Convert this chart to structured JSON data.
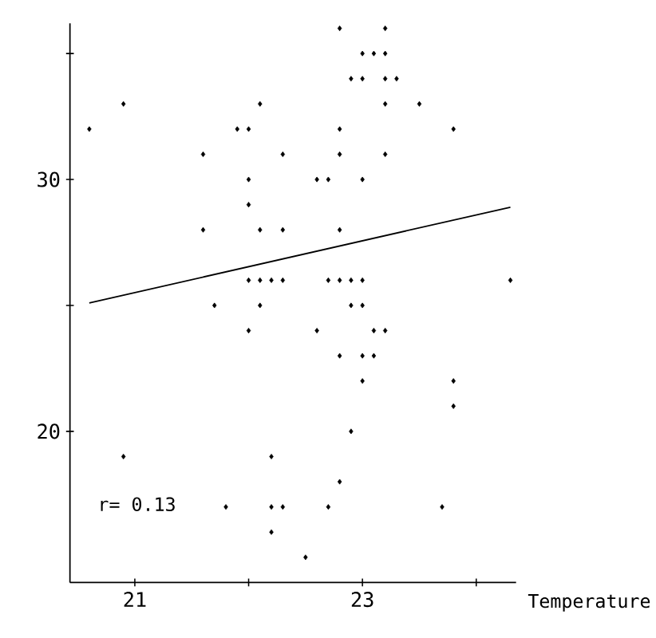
{
  "chart_data": {
    "type": "scatter",
    "xlabel": "Temperature",
    "annotations": [
      "r= 0.13"
    ],
    "xlim": [
      20.43,
      24.35
    ],
    "ylim": [
      14,
      36.2
    ],
    "xticks": [
      21,
      {
        "value": 22,
        "label": null
      },
      23,
      {
        "value": 24,
        "label": null
      }
    ],
    "yticks": [
      20,
      {
        "value": 25,
        "label": null
      },
      30,
      {
        "value": 35,
        "label": null
      }
    ],
    "grid": false,
    "series": [
      {
        "marker": "diamond",
        "color": "#000000",
        "x": [
          20.9,
          20.6,
          22.1,
          21.9,
          22.0,
          21.6,
          22.3,
          22.0,
          22.0,
          21.6,
          22.1,
          22.3,
          22.0,
          22.1,
          22.2,
          22.3,
          21.7,
          22.1,
          22.8,
          23.2,
          23.0,
          23.1,
          23.2,
          22.9,
          23.0,
          23.2,
          23.3,
          23.2,
          23.5,
          22.8,
          23.8,
          22.8,
          23.2,
          22.6,
          22.7,
          23.0,
          22.8,
          22.7,
          22.8,
          22.9,
          23.0,
          24.3,
          22.9,
          23.0,
          22.6,
          23.1,
          23.2,
          22.8,
          23.0,
          23.1,
          23.0,
          23.8,
          23.8,
          22.9,
          22.8,
          22.7,
          23.7,
          22.5,
          22.0,
          20.9,
          22.2,
          21.8,
          22.2,
          22.3,
          22.2
        ],
        "values": [
          33,
          32,
          33,
          32,
          32,
          31,
          31,
          30,
          29,
          28,
          28,
          28,
          26,
          26,
          26,
          26,
          25,
          25,
          36,
          36,
          35,
          35,
          35,
          34,
          34,
          34,
          34,
          33,
          33,
          32,
          32,
          31,
          31,
          30,
          30,
          30,
          28,
          26,
          26,
          26,
          26,
          26,
          25,
          25,
          24,
          24,
          24,
          23,
          23,
          23,
          22,
          22,
          21,
          20,
          18,
          17,
          17,
          15,
          24,
          19,
          19,
          17,
          17,
          17,
          16
        ]
      },
      {
        "type": "line",
        "color": "#000000",
        "x": [
          20.6,
          24.3
        ],
        "values": [
          25.1,
          28.9
        ]
      }
    ]
  }
}
